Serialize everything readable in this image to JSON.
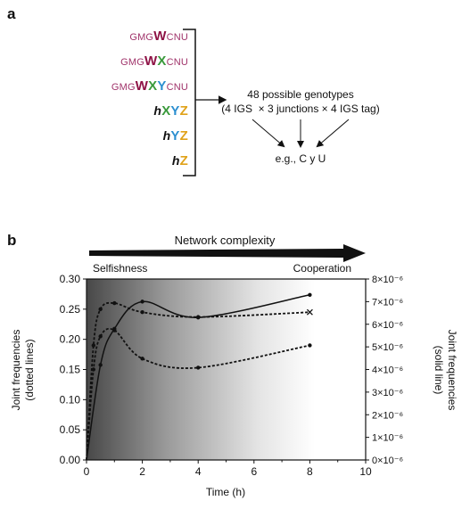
{
  "panel_a": {
    "label": "a",
    "genotypes": [
      [
        {
          "t": "GMG",
          "c": "base"
        },
        {
          "t": "W",
          "c": "W"
        },
        {
          "t": "CNU",
          "c": "base"
        }
      ],
      [
        {
          "t": "GMG",
          "c": "base"
        },
        {
          "t": "W",
          "c": "W"
        },
        {
          "t": "X",
          "c": "X"
        },
        {
          "t": "CNU",
          "c": "base"
        }
      ],
      [
        {
          "t": "GMG",
          "c": "base"
        },
        {
          "t": "W",
          "c": "W"
        },
        {
          "t": "X",
          "c": "X"
        },
        {
          "t": "Y",
          "c": "Y"
        },
        {
          "t": "CNU",
          "c": "base"
        }
      ],
      [
        {
          "t": "h",
          "c": "h"
        },
        {
          "t": "X",
          "c": "X"
        },
        {
          "t": "Y",
          "c": "Y"
        },
        {
          "t": "Z",
          "c": "Z"
        }
      ],
      [
        {
          "t": "h",
          "c": "h"
        },
        {
          "t": "Y",
          "c": "Y"
        },
        {
          "t": "Z",
          "c": "Z"
        }
      ],
      [
        {
          "t": "h",
          "c": "h"
        },
        {
          "t": "Z",
          "c": "Z"
        }
      ]
    ],
    "summary_line1": "48 possible genotypes",
    "summary_line2": "(4 IGS  × 3 junctions × 4 IGS tag)",
    "example": "e.g., C y U"
  },
  "panel_b": {
    "label": "b",
    "arrow_label": "Network complexity",
    "left_label": "Selfishness",
    "right_label": "Cooperation"
  },
  "chart_data": {
    "type": "line",
    "xlabel": "Time (h)",
    "ylabel_left": [
      "Joint frequencies",
      "(dotted lines)"
    ],
    "ylabel_right": [
      "Joint frequencies",
      "(solid line)"
    ],
    "xlim": [
      0,
      10
    ],
    "ylim_left": [
      0,
      0.3
    ],
    "ylim_right": [
      0,
      8e-06
    ],
    "x_ticks": [
      "0",
      "2",
      "4",
      "6",
      "8",
      "10"
    ],
    "y_ticks_left": [
      "0.00",
      "0.05",
      "0.10",
      "0.15",
      "0.20",
      "0.25",
      "0.30"
    ],
    "y_ticks_right": [
      "0×10⁻⁶",
      "1×10⁻⁶",
      "2×10⁻⁶",
      "3×10⁻⁶",
      "4×10⁻⁶",
      "5×10⁻⁶",
      "6×10⁻⁶",
      "7×10⁻⁶",
      "8×10⁻⁶"
    ],
    "series": [
      {
        "style": "solid",
        "axis": "right",
        "x": [
          0,
          0.5,
          1,
          2,
          4,
          8
        ],
        "y": [
          0.0,
          4.2e-06,
          5.8e-06,
          7e-06,
          6.3e-06,
          7.3e-06
        ]
      },
      {
        "style": "dotted",
        "axis": "left",
        "marker": "x",
        "x": [
          0,
          0.25,
          0.5,
          1,
          2,
          4,
          8
        ],
        "y": [
          0.0,
          0.19,
          0.25,
          0.26,
          0.245,
          0.237,
          0.245
        ]
      },
      {
        "style": "dotted",
        "axis": "left",
        "x": [
          0,
          0.25,
          0.5,
          1,
          2,
          4,
          8
        ],
        "y": [
          0.0,
          0.15,
          0.205,
          0.215,
          0.168,
          0.153,
          0.19
        ]
      }
    ]
  },
  "colors": {
    "gradient_dark": "#444444",
    "gradient_light": "#ffffff"
  }
}
